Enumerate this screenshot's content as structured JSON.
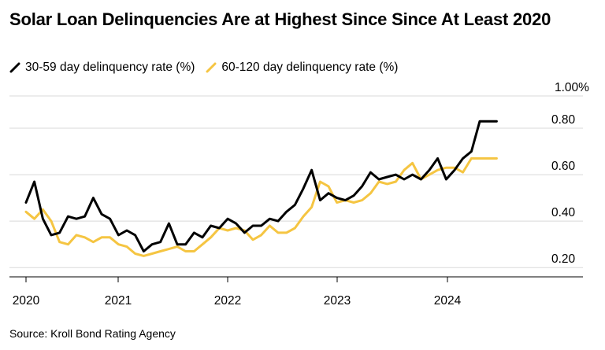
{
  "source": "Source: Kroll Bond Rating Agency",
  "chart_data": {
    "type": "line",
    "title": "Solar Loan Delinquencies Are at Highest Since Since At Least 2020",
    "yticks": [
      "0.20",
      "0.40",
      "0.60",
      "0.80",
      "1.00%"
    ],
    "ytick_values": [
      0.2,
      0.4,
      0.6,
      0.8,
      1.0
    ],
    "xticks": [
      "2020",
      "2021",
      "2022",
      "2023",
      "2024"
    ],
    "ylim": [
      0.16,
      1.0
    ],
    "xlim": [
      2020.0,
      2024.75
    ],
    "grid": true,
    "legend_position": "top-left",
    "series": [
      {
        "name": "30-59 day delinquency rate (%)",
        "color": "#000000",
        "x": [
          2020.0,
          2020.083,
          2020.167,
          2020.25,
          2020.333,
          2020.417,
          2020.5,
          2020.583,
          2020.667,
          2020.75,
          2020.833,
          2020.917,
          2021.0,
          2021.083,
          2021.167,
          2021.25,
          2021.333,
          2021.417,
          2021.5,
          2021.583,
          2021.667,
          2021.75,
          2021.833,
          2021.917,
          2022.0,
          2022.083,
          2022.167,
          2022.25,
          2022.333,
          2022.417,
          2022.5,
          2022.583,
          2022.667,
          2022.75,
          2022.833,
          2022.917,
          2023.0,
          2023.083,
          2023.167,
          2023.25,
          2023.333,
          2023.417,
          2023.5,
          2023.583,
          2023.667,
          2023.75,
          2023.833,
          2023.917,
          2024.0,
          2024.083,
          2024.167,
          2024.25,
          2024.333,
          2024.417,
          2024.5,
          2024.583,
          2024.667
        ],
        "values": [
          0.48,
          0.57,
          0.41,
          0.34,
          0.35,
          0.42,
          0.41,
          0.42,
          0.5,
          0.43,
          0.41,
          0.34,
          0.36,
          0.34,
          0.27,
          0.3,
          0.31,
          0.39,
          0.3,
          0.3,
          0.35,
          0.33,
          0.38,
          0.37,
          0.41,
          0.39,
          0.35,
          0.38,
          0.38,
          0.41,
          0.4,
          0.44,
          0.47,
          0.54,
          0.62,
          0.49,
          0.52,
          0.5,
          0.49,
          0.51,
          0.55,
          0.61,
          0.58,
          0.59,
          0.6,
          0.58,
          0.6,
          0.58,
          0.62,
          0.67,
          0.58,
          0.62,
          0.67,
          0.7,
          0.83,
          0.83,
          0.83
        ]
      },
      {
        "name": "60-120 day delinquency rate (%)",
        "color": "#f5c542",
        "x": [
          2020.0,
          2020.083,
          2020.167,
          2020.25,
          2020.333,
          2020.417,
          2020.5,
          2020.583,
          2020.667,
          2020.75,
          2020.833,
          2020.917,
          2021.0,
          2021.083,
          2021.167,
          2021.25,
          2021.333,
          2021.417,
          2021.5,
          2021.583,
          2021.667,
          2021.75,
          2021.833,
          2021.917,
          2022.0,
          2022.083,
          2022.167,
          2022.25,
          2022.333,
          2022.417,
          2022.5,
          2022.583,
          2022.667,
          2022.75,
          2022.833,
          2022.917,
          2023.0,
          2023.083,
          2023.167,
          2023.25,
          2023.333,
          2023.417,
          2023.5,
          2023.583,
          2023.667,
          2023.75,
          2023.833,
          2023.917,
          2024.0,
          2024.083,
          2024.167,
          2024.25,
          2024.333,
          2024.417,
          2024.5,
          2024.583,
          2024.667
        ],
        "values": [
          0.44,
          0.41,
          0.45,
          0.4,
          0.31,
          0.3,
          0.34,
          0.33,
          0.31,
          0.33,
          0.33,
          0.3,
          0.29,
          0.26,
          0.25,
          0.26,
          0.27,
          0.28,
          0.29,
          0.27,
          0.27,
          0.3,
          0.33,
          0.37,
          0.36,
          0.37,
          0.36,
          0.32,
          0.34,
          0.38,
          0.35,
          0.35,
          0.37,
          0.42,
          0.46,
          0.57,
          0.55,
          0.48,
          0.49,
          0.48,
          0.49,
          0.52,
          0.57,
          0.56,
          0.57,
          0.62,
          0.65,
          0.58,
          0.6,
          0.62,
          0.63,
          0.63,
          0.61,
          0.67,
          0.67,
          0.67,
          0.67
        ]
      }
    ]
  }
}
